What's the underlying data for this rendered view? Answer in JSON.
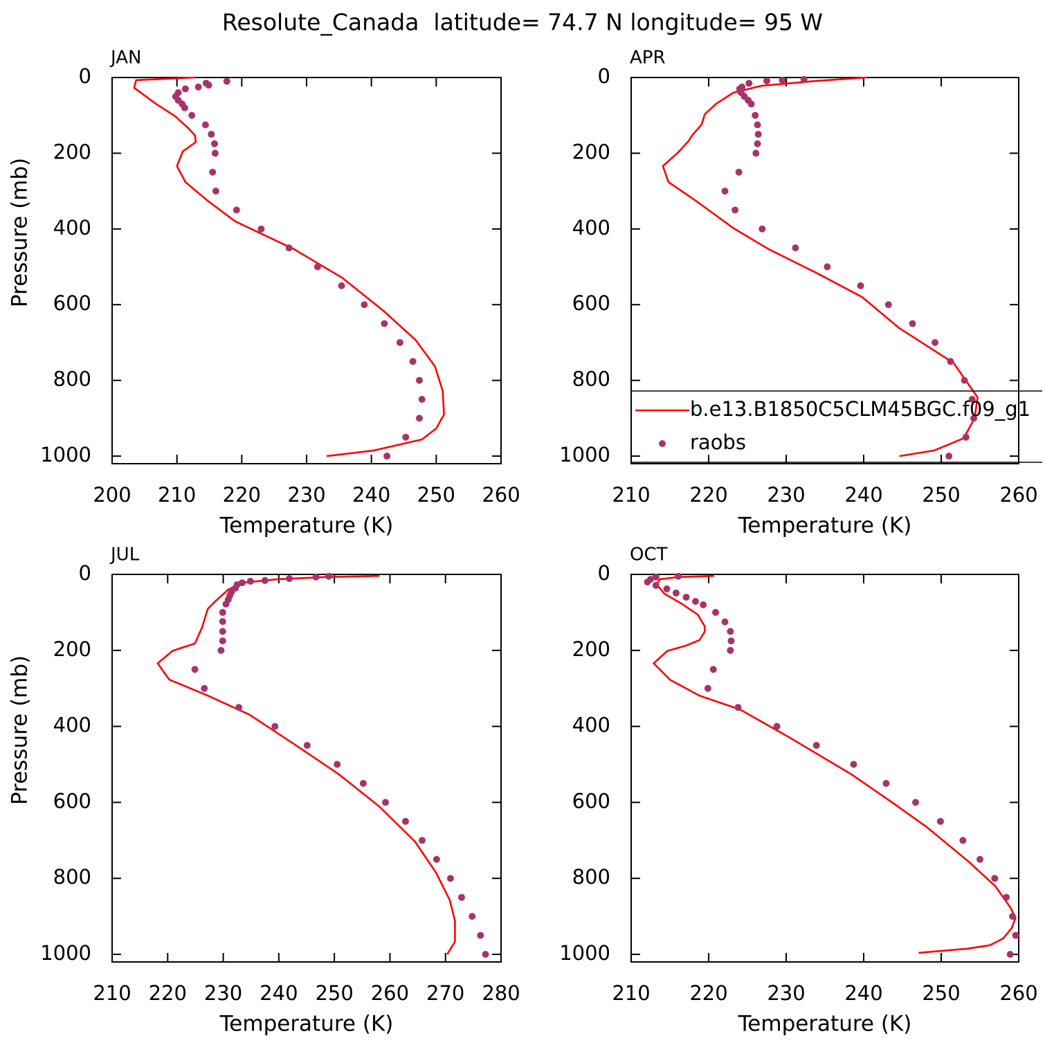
{
  "title": "Resolute_Canada  latitude= 74.7 N longitude= 95 W",
  "chart_data": [
    {
      "type": "line",
      "title": "JAN",
      "xlabel": "Temperature (K)",
      "ylabel": "Pressure (mb)",
      "xlim": [
        200,
        260
      ],
      "xticks": [
        200,
        210,
        220,
        230,
        240,
        250,
        260
      ],
      "ylim": [
        0,
        1020
      ],
      "yticks": [
        0,
        200,
        400,
        600,
        800,
        1000
      ],
      "y_inverted": true,
      "series": [
        {
          "mode": "line",
          "color": "#ff0000",
          "x": [
            212.8,
            203.7,
            203.4,
            206.7,
            209.7,
            211.7,
            212.8,
            212.9,
            210.9,
            210.0,
            211.3,
            214.7,
            219.0,
            228.0,
            235.5,
            241.9,
            246.8,
            249.8,
            251.0,
            251.2,
            250.0,
            247.8,
            240.4,
            233.1
          ],
          "y": [
            0,
            7,
            27,
            69,
            102,
            133,
            153,
            171,
            195,
            234,
            276,
            325,
            380,
            453,
            529,
            617,
            693,
            763,
            828,
            890,
            927,
            956,
            985,
            1000
          ]
        },
        {
          "mode": "markers",
          "color": "#a8336b",
          "x": [
            217.7,
            214.5,
            214.9,
            213.3,
            211.3,
            210.2,
            209.8,
            210.2,
            210.8,
            211.2,
            212.3,
            214.4,
            215.3,
            215.8,
            215.9,
            215.5,
            216.0,
            219.2,
            223.0,
            227.3,
            231.7,
            235.4,
            238.9,
            242.0,
            244.4,
            246.4,
            247.4,
            247.8,
            247.4,
            245.3,
            242.4
          ],
          "y": [
            10,
            15,
            20,
            25,
            30,
            40,
            50,
            60,
            70,
            80,
            100,
            125,
            150,
            175,
            200,
            250,
            300,
            350,
            400,
            450,
            500,
            550,
            600,
            650,
            700,
            750,
            800,
            850,
            900,
            950,
            1000
          ]
        }
      ]
    },
    {
      "type": "line",
      "title": "APR",
      "xlabel": "Temperature (K)",
      "xlim": [
        210,
        260
      ],
      "xticks": [
        210,
        220,
        230,
        240,
        250,
        260
      ],
      "ylim": [
        0,
        1020
      ],
      "yticks": [
        0,
        200,
        400,
        600,
        800,
        1000
      ],
      "y_inverted": true,
      "legend": "lower left",
      "series": [
        {
          "name": "b.e13.B1850C5CLM45BGC.f09_g1",
          "mode": "line",
          "color": "#ff0000",
          "x": [
            240.4,
            233.9,
            226.8,
            223.2,
            221.0,
            219.5,
            219.1,
            217.9,
            217.4,
            216.1,
            214.1,
            214.8,
            218.3,
            223.2,
            227.7,
            233.9,
            239.8,
            244.6,
            251.6,
            254.7,
            254.3,
            252.9,
            249.1,
            244.6
          ],
          "y": [
            0,
            9,
            22,
            40,
            69,
            97,
            124,
            152,
            168,
            197,
            234,
            276,
            325,
            398,
            453,
            516,
            580,
            662,
            754,
            845,
            900,
            953,
            985,
            1000
          ]
        },
        {
          "name": "raobs",
          "mode": "markers",
          "color": "#a8336b",
          "x": [
            232.3,
            229.5,
            227.5,
            225.2,
            224.3,
            224.0,
            224.2,
            224.6,
            225.1,
            225.5,
            226.0,
            226.3,
            226.4,
            226.3,
            226.1,
            223.9,
            222.1,
            223.4,
            226.9,
            231.2,
            235.3,
            239.6,
            243.2,
            246.3,
            249.2,
            251.2,
            253.0,
            254.0,
            254.2,
            253.2,
            251.0
          ],
          "y": [
            5,
            7,
            9,
            15,
            25,
            30,
            40,
            50,
            60,
            70,
            100,
            125,
            150,
            175,
            200,
            250,
            300,
            350,
            400,
            450,
            500,
            550,
            600,
            650,
            700,
            750,
            800,
            850,
            900,
            950,
            1000
          ]
        }
      ]
    },
    {
      "type": "line",
      "title": "JUL",
      "xlabel": "Temperature (K)",
      "ylabel": "Pressure (mb)",
      "xlim": [
        210,
        280
      ],
      "xticks": [
        210,
        220,
        230,
        240,
        250,
        260,
        270,
        280
      ],
      "ylim": [
        0,
        1020
      ],
      "yticks": [
        0,
        200,
        400,
        600,
        800,
        1000
      ],
      "y_inverted": true,
      "series": [
        {
          "mode": "line",
          "color": "#ff0000",
          "x": [
            258.1,
            248.4,
            239.6,
            233.4,
            230.9,
            228.4,
            227.2,
            226.2,
            224.9,
            220.9,
            218.2,
            220.3,
            227.2,
            234.7,
            243.4,
            250.8,
            258.1,
            264.5,
            268.3,
            270.8,
            271.7,
            271.7,
            270.3
          ],
          "y": [
            4,
            7,
            13,
            22,
            40,
            73,
            91,
            139,
            182,
            201,
            234,
            277,
            319,
            369,
            453,
            526,
            611,
            703,
            785,
            858,
            912,
            967,
            1000
          ]
        },
        {
          "mode": "markers",
          "color": "#a8336b",
          "x": [
            249.0,
            246.7,
            241.9,
            237.5,
            234.9,
            233.4,
            232.5,
            232.2,
            231.5,
            231.2,
            230.9,
            230.5,
            229.9,
            229.9,
            229.9,
            229.9,
            229.6,
            224.9,
            226.6,
            232.8,
            239.3,
            245.1,
            250.5,
            255.2,
            259.2,
            262.8,
            265.8,
            268.4,
            270.9,
            272.9,
            274.8,
            276.3,
            277.2
          ],
          "y": [
            5,
            7,
            11,
            16,
            18,
            22,
            27,
            36,
            46,
            55,
            66,
            78,
            100,
            124,
            150,
            175,
            200,
            250,
            300,
            350,
            400,
            450,
            500,
            550,
            600,
            650,
            700,
            750,
            800,
            850,
            900,
            950,
            1000
          ]
        }
      ]
    },
    {
      "type": "line",
      "title": "OCT",
      "xlabel": "Temperature (K)",
      "xlim": [
        210,
        260
      ],
      "xticks": [
        210,
        220,
        230,
        240,
        250,
        260
      ],
      "ylim": [
        0,
        1020
      ],
      "yticks": [
        0,
        200,
        400,
        600,
        800,
        1000
      ],
      "y_inverted": true,
      "series": [
        {
          "mode": "line",
          "color": "#ff0000",
          "x": [
            220.7,
            216.1,
            213.7,
            213.3,
            214.3,
            216.5,
            218.6,
            219.5,
            219.5,
            218.8,
            217.0,
            214.7,
            212.9,
            215.0,
            218.8,
            224.1,
            230.4,
            238.4,
            243.8,
            248.2,
            253.6,
            257.0,
            258.9,
            259.6,
            259.1,
            258.0,
            256.3,
            253.4,
            247.1
          ],
          "y": [
            4,
            7,
            13,
            27,
            51,
            77,
            106,
            137,
            150,
            173,
            188,
            201,
            234,
            277,
            319,
            356,
            429,
            526,
            602,
            666,
            757,
            821,
            876,
            903,
            931,
            958,
            976,
            985,
            996
          ]
        },
        {
          "mode": "markers",
          "color": "#a8336b",
          "x": [
            216.1,
            213.2,
            212.5,
            212.1,
            213.2,
            214.6,
            215.8,
            217.1,
            218.3,
            219.3,
            220.9,
            222.1,
            222.8,
            222.9,
            222.8,
            220.6,
            219.9,
            223.8,
            228.8,
            233.9,
            238.7,
            242.9,
            246.7,
            249.9,
            252.8,
            255.0,
            256.9,
            258.4,
            259.2,
            259.6,
            258.9
          ],
          "y": [
            5,
            7,
            13,
            20,
            29,
            38,
            49,
            60,
            71,
            80,
            100,
            125,
            150,
            175,
            200,
            250,
            300,
            350,
            400,
            450,
            500,
            550,
            600,
            650,
            700,
            750,
            800,
            850,
            900,
            950,
            1000
          ]
        }
      ]
    }
  ]
}
